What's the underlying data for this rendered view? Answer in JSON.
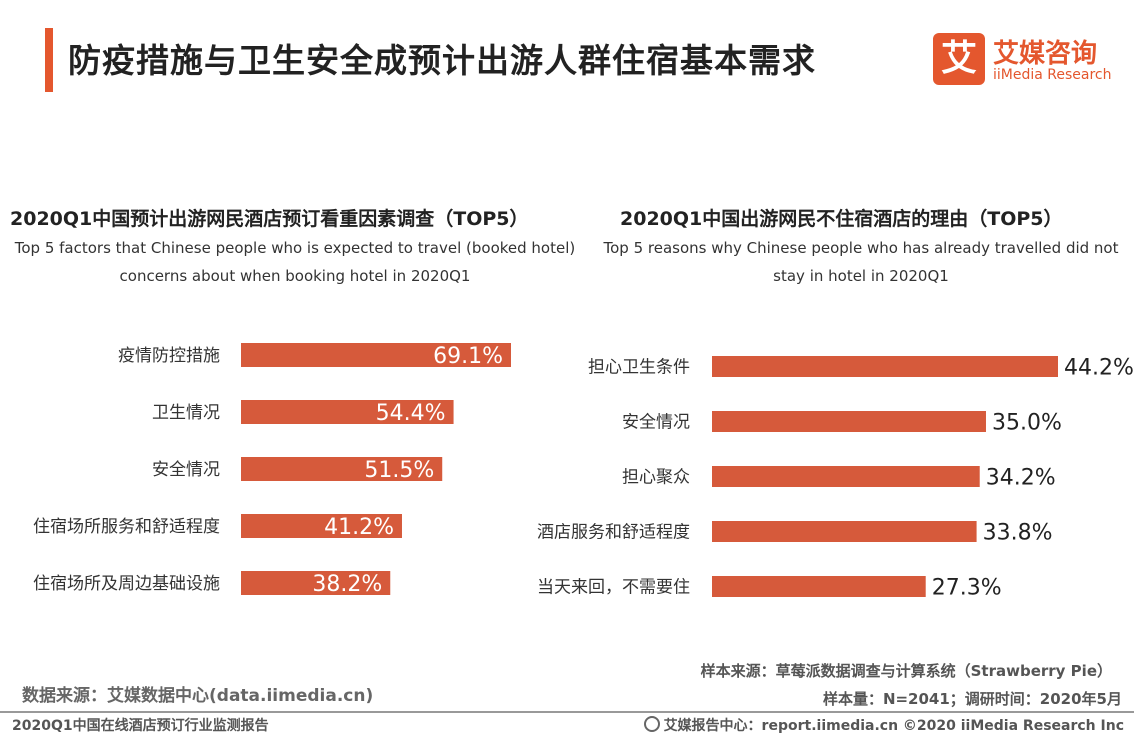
{
  "header": {
    "title": "防疫措施与卫生安全成预计出游人群住宿基本需求",
    "logo_mark": "艾",
    "logo_cn": "艾媒咨询",
    "logo_en": "iiMedia Research",
    "accent_color": "#e4572e"
  },
  "chart_data": [
    {
      "type": "bar",
      "orientation": "horizontal",
      "title": "2020Q1中国预计出游网民酒店预订看重因素调查（TOP5）",
      "subtitle": "Top 5 factors that Chinese people who is expected to travel (booked hotel) concerns about when booking hotel in 2020Q1",
      "categories": [
        "疫情防控措施",
        "卫生情况",
        "安全情况",
        "住宿场所服务和舒适程度",
        "住宿场所及周边基础设施"
      ],
      "values": [
        69.1,
        54.4,
        51.5,
        41.2,
        38.2
      ],
      "value_labels": [
        "69.1%",
        "54.4%",
        "51.5%",
        "41.2%",
        "38.2%"
      ],
      "label_position": "inside-end",
      "bar_color": "#d65a3b",
      "xlim": [
        0,
        100
      ]
    },
    {
      "type": "bar",
      "orientation": "horizontal",
      "title": "2020Q1中国出游网民不住宿酒店的理由（TOP5）",
      "subtitle": "Top 5 reasons why Chinese people who has already travelled did not stay in hotel  in 2020Q1",
      "categories": [
        "担心卫生条件",
        "安全情况",
        "担心聚众",
        "酒店服务和舒适程度",
        "当天来回，不需要住"
      ],
      "values": [
        44.2,
        35.0,
        34.2,
        33.8,
        27.3
      ],
      "value_labels": [
        "44.2%",
        "35.0%",
        "34.2%",
        "33.8%",
        "27.3%"
      ],
      "label_position": "outside-end",
      "bar_color": "#d65a3b",
      "xlim": [
        0,
        60
      ]
    }
  ],
  "footer": {
    "data_source": "数据来源：艾媒数据中心(data.iimedia.cn)",
    "sample_source": "样本来源：草莓派数据调查与计算系统（Strawberry Pie）",
    "sample_size": "样本量：N=2041；调研时间：2020年5月",
    "report_name": "2020Q1中国在线酒店预订行业监测报告",
    "report_center": "艾媒报告中心：report.iimedia.cn  ©2020  iiMedia Research  Inc"
  }
}
